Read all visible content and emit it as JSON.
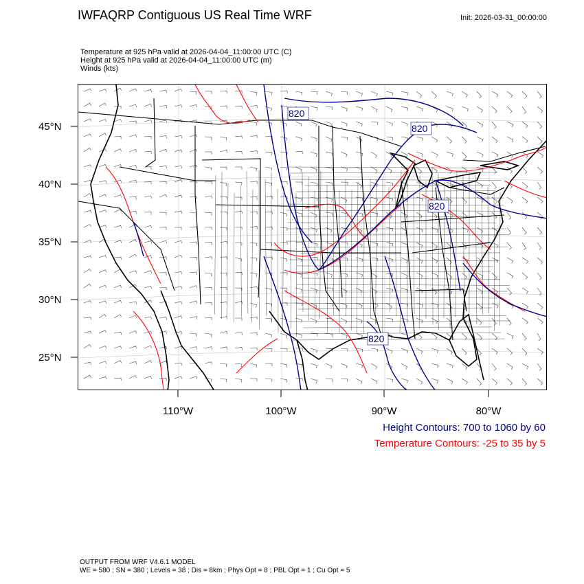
{
  "title": "IWFAQRP Contiguous US Real Time WRF",
  "init": "Init: 2026-03-31_00:00:00",
  "fields": [
    "Temperature at 925 hPa valid at 2026-04-04_11:00:00 UTC   (C)",
    "Height at 925 hPa valid at 2026-04-04_11:00:00 UTC   (m)",
    "Winds   (kts)"
  ],
  "lat_labels": [
    "45°N",
    "40°N",
    "35°N",
    "30°N",
    "25°N"
  ],
  "lon_labels": [
    "110°W",
    "100°W",
    "90°W",
    "80°W"
  ],
  "contour_labels": [
    "820",
    "820",
    "820",
    "820"
  ],
  "legend": {
    "height": "Height Contours: 700 to 1060 by 60",
    "temperature": "Temperature Contours: -25 to 35 by 5"
  },
  "footer": [
    "OUTPUT FROM WRF V4.6.1 MODEL",
    "WE = 580 ; SN = 380 ; Levels = 38 ; Dis = 8km ; Phys Opt = 8 ; PBL Opt = 1 ; Cu Opt = 5"
  ],
  "colors": {
    "height_contour": "#00008b",
    "temperature_contour": "#ff0000",
    "map_lines": "#000000"
  }
}
